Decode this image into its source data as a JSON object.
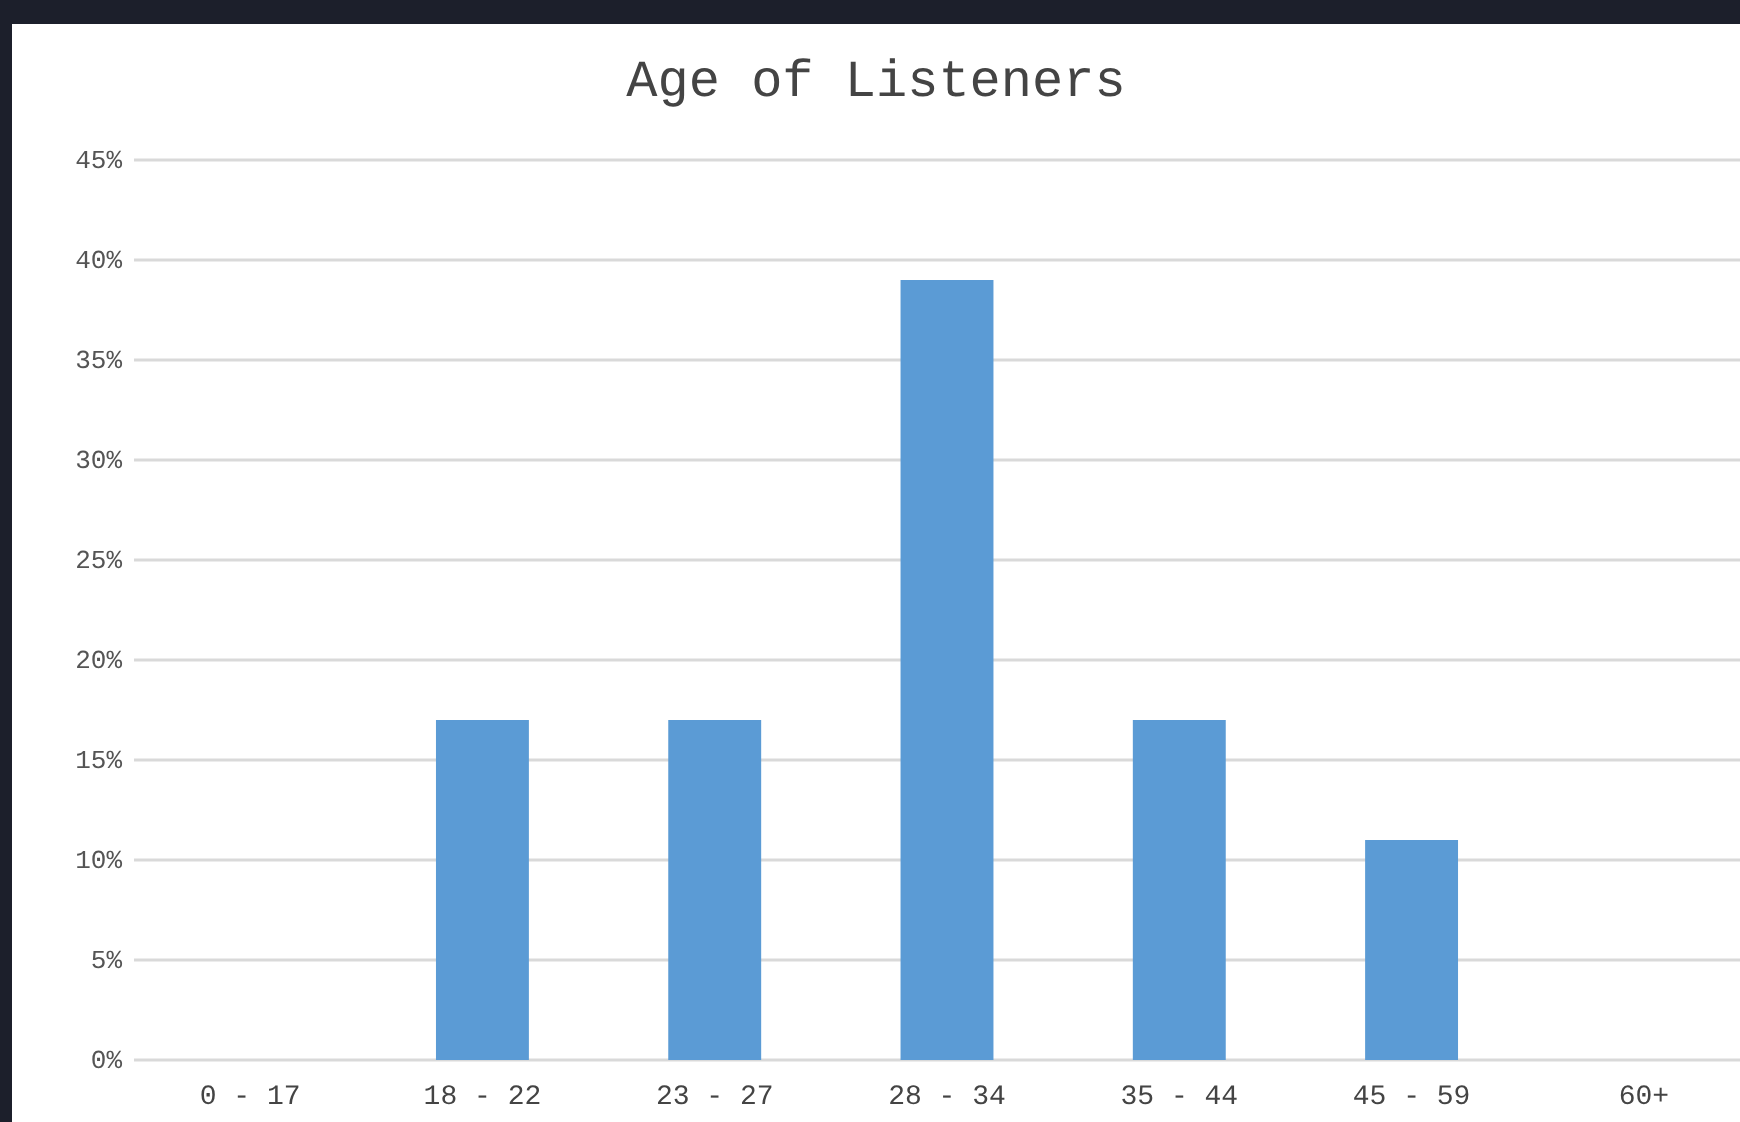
{
  "chart_data": {
    "type": "bar",
    "title": "Age of Listeners",
    "categories": [
      "0 - 17",
      "18 - 22",
      "23 - 27",
      "28 - 34",
      "35 - 44",
      "45 - 59",
      "60+"
    ],
    "values": [
      0,
      17,
      17,
      39,
      17,
      11,
      0
    ],
    "color": "#5b9bd5",
    "ylim": [
      0,
      45
    ],
    "yticks": [
      {
        "value": 0,
        "label": "0%"
      },
      {
        "value": 5,
        "label": "5%"
      },
      {
        "value": 10,
        "label": "10%"
      },
      {
        "value": 15,
        "label": "15%"
      },
      {
        "value": 20,
        "label": "20%"
      },
      {
        "value": 25,
        "label": "25%"
      },
      {
        "value": 30,
        "label": "30%"
      },
      {
        "value": 35,
        "label": "35%"
      },
      {
        "value": 40,
        "label": "40%"
      },
      {
        "value": 45,
        "label": "45%"
      }
    ],
    "grid": "y"
  }
}
